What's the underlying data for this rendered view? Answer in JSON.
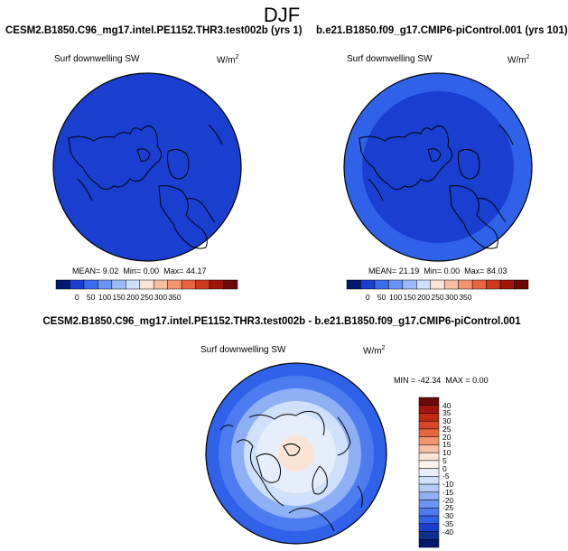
{
  "figure_title": "DJF",
  "panels": {
    "left": {
      "run_label": "CESM2.B1850.C96_mg17.intel.PE1152.THR3.test002b (yrs 1)",
      "variable": "Surf downwelling SW",
      "units": "W/m",
      "units_exp": "2",
      "mean_label": "MEAN=",
      "mean": "9.02",
      "min_label": "Min=",
      "min": "0.00",
      "max_label": "Max=",
      "max": "44.17",
      "fill_color": "#1a3fd0"
    },
    "right": {
      "run_label": "b.e21.B1850.f09_g17.CMIP6-piControl.001 (yrs 101)",
      "variable": "Surf downwelling SW",
      "units": "W/m",
      "units_exp": "2",
      "mean_label": "MEAN=",
      "mean": "21.19",
      "min_label": "Min=",
      "min": "0.00",
      "max_label": "Max=",
      "max": "84.03",
      "fill_color": "#1a3fd0",
      "ring_color": "#2f62e8"
    },
    "diff": {
      "run_label": "CESM2.B1850.C96_mg17.intel.PE1152.THR3.test002b - b.e21.B1850.f09_g17.CMIP6-piControl.001",
      "variable": "Surf downwelling SW",
      "units": "W/m",
      "units_exp": "2",
      "min_label": "MIN =",
      "min": "-42.34",
      "max_label": "MAX =",
      "max": "0.00"
    }
  },
  "colorbar_abs": {
    "labels": [
      "0",
      "50",
      "100",
      "150",
      "200",
      "250",
      "300",
      "350"
    ],
    "colors": [
      "#00186e",
      "#1a3fd0",
      "#3a6cf0",
      "#6b95f5",
      "#9bbaf7",
      "#cfe0fa",
      "#fbe4d6",
      "#f9bfa3",
      "#f3956f",
      "#e8653f",
      "#d03a1c",
      "#a0160a",
      "#6b0a04"
    ]
  },
  "colorbar_diff": {
    "labels": [
      "40",
      "35",
      "30",
      "25",
      "20",
      "15",
      "10",
      "5",
      "0",
      "-5",
      "-10",
      "-15",
      "-20",
      "-25",
      "-30",
      "-35",
      "-40"
    ],
    "colors": [
      "#6b0a04",
      "#a0160a",
      "#c22a12",
      "#d9472a",
      "#e8653f",
      "#f3956f",
      "#f9bfa3",
      "#fbe4d6",
      "#fdf3ec",
      "#e6eefb",
      "#cfe0fa",
      "#b3cbf8",
      "#8fb0f5",
      "#6b95f5",
      "#4c7cf0",
      "#2f62e8",
      "#1a3fd0",
      "#10308f",
      "#00186e"
    ]
  }
}
